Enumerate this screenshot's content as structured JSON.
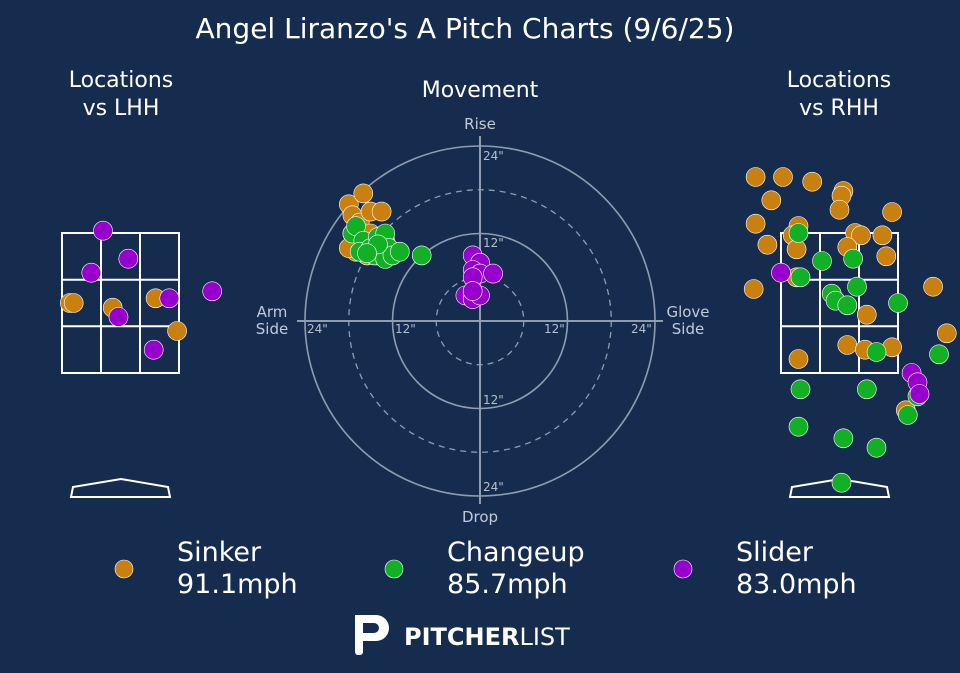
{
  "colors": {
    "background": "#162c4f",
    "sinker": "#c8800e",
    "changeup": "#12b025",
    "slider": "#9700cc",
    "grid": "#8e9db0",
    "text": "#ffffff",
    "subtext": "#c3cad6"
  },
  "title": "Angel Liranzo's A Pitch Charts (9/6/25)",
  "panels": {
    "lhh_title": [
      "Locations",
      "vs LHH"
    ],
    "movement_title": "Movement",
    "rhh_title": [
      "Locations",
      "vs RHH"
    ]
  },
  "movement_axes": {
    "top": "Rise",
    "bottom": "Drop",
    "left": [
      "Arm",
      "Side"
    ],
    "right": [
      "Glove",
      "Side"
    ],
    "ring_labels": [
      "12\"",
      "24\""
    ],
    "range_inches": 24
  },
  "legend": [
    {
      "pitch": "Sinker",
      "speed": "91.1mph",
      "color_key": "sinker"
    },
    {
      "pitch": "Changeup",
      "speed": "85.7mph",
      "color_key": "changeup"
    },
    {
      "pitch": "Slider",
      "speed": "83.0mph",
      "color_key": "slider"
    }
  ],
  "brand": {
    "bold": "PITCHER",
    "light": "LIST",
    "logo_icon": "pitcherlist-p-logo"
  },
  "chart_data": [
    {
      "type": "scatter",
      "title": "Locations vs LHH",
      "units": "strike-zone grid (x: 0-3 zone thirds left to right, y: 0-3 zone thirds bottom to top)",
      "series": [
        {
          "name": "Sinker",
          "points": [
            [
              0.2,
              1.5
            ],
            [
              0.3,
              1.5
            ],
            [
              1.3,
              1.4
            ],
            [
              2.4,
              1.6
            ],
            [
              2.95,
              0.9
            ]
          ]
        },
        {
          "name": "Changeup",
          "points": []
        },
        {
          "name": "Slider",
          "points": [
            [
              1.05,
              3.05
            ],
            [
              1.7,
              2.45
            ],
            [
              0.75,
              2.15
            ],
            [
              2.75,
              1.6
            ],
            [
              3.85,
              1.75
            ],
            [
              1.45,
              1.2
            ],
            [
              2.35,
              0.5
            ]
          ]
        }
      ]
    },
    {
      "type": "scatter",
      "title": "Movement",
      "xlabel": "Arm Side / Glove Side (inches)",
      "ylabel": "Drop / Rise (inches)",
      "xlim": [
        -24,
        24
      ],
      "ylim": [
        -24,
        24
      ],
      "series": [
        {
          "name": "Sinker",
          "points": [
            [
              -18,
              16
            ],
            [
              -16,
              17.5
            ],
            [
              -17.5,
              14.5
            ],
            [
              -16.5,
              13.5
            ],
            [
              -15,
              15
            ],
            [
              -13.5,
              15
            ],
            [
              -17.5,
              12
            ],
            [
              -16,
              11
            ],
            [
              -14.5,
              10.5
            ],
            [
              -13,
              11
            ],
            [
              -17,
              9.5
            ],
            [
              -15.5,
              9
            ],
            [
              -14,
              9
            ],
            [
              -18,
              10
            ],
            [
              -15,
              12
            ]
          ]
        },
        {
          "name": "Changeup",
          "points": [
            [
              -17.5,
              12
            ],
            [
              -17,
              13
            ],
            [
              -16,
              11
            ],
            [
              -16.5,
              9.5
            ],
            [
              -15,
              10
            ],
            [
              -14,
              11.5
            ],
            [
              -13,
              12
            ],
            [
              -12.5,
              10
            ],
            [
              -14.5,
              9
            ],
            [
              -13,
              8.5
            ],
            [
              -12,
              9
            ],
            [
              -11,
              9.5
            ],
            [
              -8,
              9
            ],
            [
              -14,
              10.5
            ],
            [
              -15.5,
              9.3
            ]
          ]
        },
        {
          "name": "Slider",
          "points": [
            [
              -1,
              9
            ],
            [
              0,
              8
            ],
            [
              -1,
              7
            ],
            [
              0,
              6.5
            ],
            [
              -1,
              6
            ],
            [
              1.8,
              6.5
            ],
            [
              -2,
              3.5
            ],
            [
              -1,
              3
            ],
            [
              0,
              3.5
            ],
            [
              -1,
              4.1
            ]
          ]
        }
      ]
    },
    {
      "type": "scatter",
      "title": "Locations vs RHH",
      "units": "strike-zone grid (x: 0-3 zone thirds left to right, y: 0-3 zone thirds bottom to top)",
      "series": [
        {
          "name": "Sinker",
          "points": [
            [
              -0.65,
              4.2
            ],
            [
              0.05,
              4.2
            ],
            [
              0.8,
              4.1
            ],
            [
              1.6,
              3.9
            ],
            [
              1.55,
              3.8
            ],
            [
              -0.25,
              3.7
            ],
            [
              -0.65,
              3.2
            ],
            [
              1.5,
              3.5
            ],
            [
              2.85,
              3.45
            ],
            [
              0.45,
              3.15
            ],
            [
              0.3,
              2.95
            ],
            [
              1.9,
              3.0
            ],
            [
              2.05,
              2.95
            ],
            [
              2.6,
              2.95
            ],
            [
              -0.35,
              2.75
            ],
            [
              1.7,
              2.7
            ],
            [
              0.4,
              2.65
            ],
            [
              2.7,
              2.5
            ],
            [
              0.4,
              2.05
            ],
            [
              -0.7,
              1.8
            ],
            [
              2.2,
              1.25
            ],
            [
              1.7,
              0.6
            ],
            [
              2.15,
              0.5
            ],
            [
              2.85,
              0.55
            ],
            [
              0.45,
              0.3
            ],
            [
              3.9,
              1.85
            ],
            [
              4.25,
              0.85
            ],
            [
              3.2,
              -0.8
            ]
          ]
        },
        {
          "name": "Changeup",
          "points": [
            [
              0.45,
              3.0
            ],
            [
              1.05,
              2.4
            ],
            [
              1.85,
              2.45
            ],
            [
              0.5,
              2.05
            ],
            [
              1.95,
              1.85
            ],
            [
              1.3,
              1.7
            ],
            [
              1.4,
              1.55
            ],
            [
              1.7,
              1.45
            ],
            [
              3.0,
              1.5
            ],
            [
              2.45,
              0.45
            ],
            [
              4.05,
              0.4
            ],
            [
              0.5,
              -0.35
            ],
            [
              2.2,
              -0.35
            ],
            [
              3.5,
              -0.5
            ],
            [
              3.25,
              -0.9
            ],
            [
              0.45,
              -1.15
            ],
            [
              1.6,
              -1.4
            ],
            [
              2.45,
              -1.6
            ],
            [
              1.55,
              -2.35
            ]
          ]
        },
        {
          "name": "Slider",
          "points": [
            [
              0,
              2.15
            ],
            [
              3.35,
              0.0
            ],
            [
              3.5,
              -0.2
            ],
            [
              3.55,
              -0.45
            ]
          ]
        }
      ]
    }
  ]
}
